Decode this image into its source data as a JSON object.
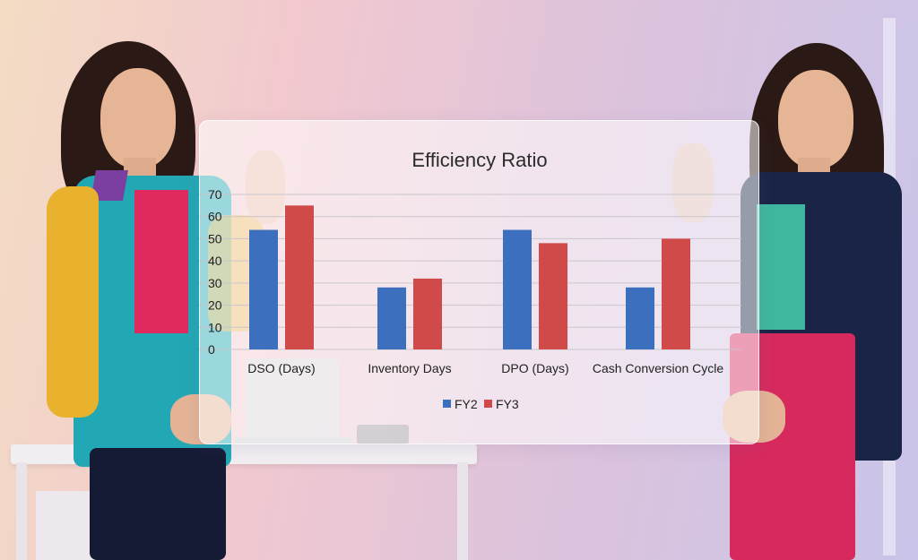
{
  "chart_data": {
    "type": "bar",
    "title": "Efficiency Ratio",
    "categories": [
      "DSO (Days)",
      "Inventory Days",
      "DPO (Days)",
      "Cash Conversion Cycle"
    ],
    "series": [
      {
        "name": "FY2",
        "color": "#3c6fbd",
        "values": [
          54,
          28,
          54,
          28
        ]
      },
      {
        "name": "FY3",
        "color": "#d14a4a",
        "values": [
          65,
          32,
          48,
          50
        ]
      }
    ],
    "yticks": [
      "0",
      "10",
      "20",
      "30",
      "40",
      "50",
      "60",
      "70"
    ],
    "ylim": [
      0,
      70
    ],
    "grid": true,
    "legend_position": "bottom"
  }
}
